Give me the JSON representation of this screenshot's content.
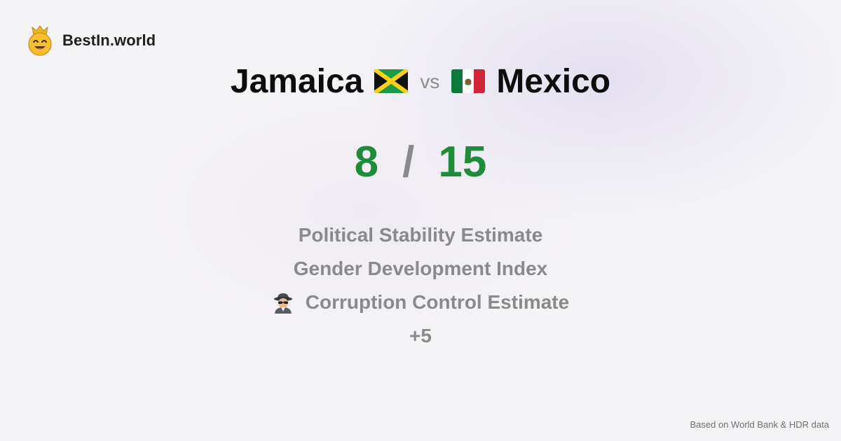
{
  "brand": {
    "name": "BestIn.world",
    "logo_icon": "crowned-smiley-icon"
  },
  "comparison": {
    "left": {
      "name": "Jamaica",
      "flag_icon": "jamaica-flag-icon"
    },
    "vs_label": "vs",
    "right": {
      "name": "Mexico",
      "flag_icon": "mexico-flag-icon"
    }
  },
  "score": {
    "left": "8",
    "separator": "/",
    "right": "15",
    "color": "#1f8c3a"
  },
  "metrics": [
    {
      "label": "Political Stability Estimate",
      "icon": ""
    },
    {
      "label": "Gender Development Index",
      "icon": ""
    },
    {
      "label": "Corruption Control Estimate",
      "icon": "detective-icon"
    },
    {
      "label": "+5",
      "icon": ""
    }
  ],
  "footer": {
    "source": "Based on World Bank & HDR data"
  }
}
